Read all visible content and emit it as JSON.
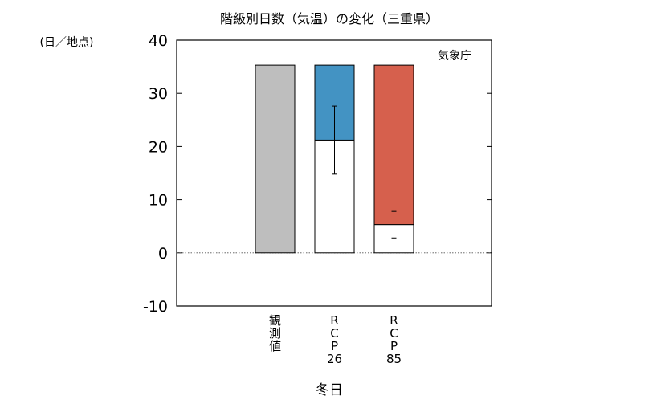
{
  "chart_data": {
    "type": "bar",
    "title": "階級別日数（気温）の変化（三重県）",
    "unit_label": "(日／地点)",
    "source_label": "気象庁",
    "xlabel": "冬日",
    "ylim": [
      -10,
      40
    ],
    "yticks": [
      -10,
      0,
      10,
      20,
      30,
      40
    ],
    "ytick_labels": [
      "-10",
      "0",
      "10",
      "20",
      "30",
      "40"
    ],
    "zero_line": true,
    "categories": [
      {
        "label_lines": [
          "観",
          "測",
          "値"
        ],
        "present": 35.3,
        "future": null,
        "error_low": null,
        "error_high": null,
        "color": "#bebebe"
      },
      {
        "label_lines": [
          "R",
          "C",
          "P",
          "26"
        ],
        "present": 35.3,
        "future": 21.2,
        "error_low": 14.8,
        "error_high": 27.6,
        "color": "#4393c3"
      },
      {
        "label_lines": [
          "R",
          "C",
          "P",
          "85"
        ],
        "present": 35.3,
        "future": 5.3,
        "error_low": 2.8,
        "error_high": 7.8,
        "color": "#d6604d"
      }
    ]
  }
}
